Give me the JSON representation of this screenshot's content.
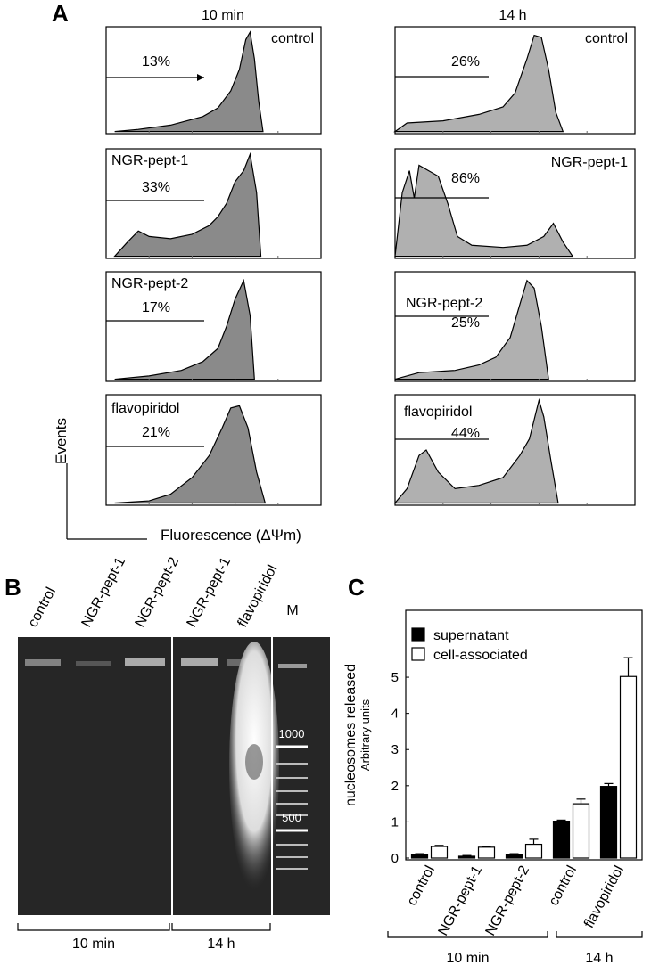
{
  "panel_a": {
    "label": "A",
    "columns": [
      {
        "title": "10 min",
        "plots": [
          {
            "label": "control",
            "percent": "13%"
          },
          {
            "label": "NGR-pept-1",
            "percent": "33%"
          },
          {
            "label": "NGR-pept-2",
            "percent": "17%"
          },
          {
            "label": "flavopiridol",
            "percent": "21%"
          }
        ]
      },
      {
        "title": "14 h",
        "plots": [
          {
            "label": "control",
            "percent": "26%"
          },
          {
            "label": "NGR-pept-1",
            "percent": "86%"
          },
          {
            "label": "NGR-pept-2",
            "percent": "25%"
          },
          {
            "label": "flavopiridol",
            "percent": "44%"
          }
        ]
      }
    ],
    "y_label": "Events",
    "x_label": "Fluorescence (ΔΨm)"
  },
  "panel_b": {
    "label": "B",
    "lanes": [
      "control",
      "NGR-pept-1",
      "NGR-pept-2",
      "NGR-pept-1",
      "flavopiridol"
    ],
    "marker_lane": "M",
    "markers": [
      "1000",
      "500"
    ],
    "groups": [
      "10 min",
      "14 h"
    ]
  },
  "chart_data": {
    "type": "bar",
    "panel_label": "C",
    "y_label": "nucleosomes released",
    "y_sublabel": "Arbitrary units",
    "categories": [
      "control",
      "NGR-pept-1",
      "NGR-pept-2",
      "control",
      "flavopiridol"
    ],
    "groups": [
      "10 min",
      "14 h"
    ],
    "series": [
      {
        "name": "supernatant",
        "color": "#000000",
        "values": [
          0.1,
          0.05,
          0.1,
          1.02,
          1.98
        ],
        "errors": [
          0.02,
          0.02,
          0.02,
          0.03,
          0.08
        ]
      },
      {
        "name": "cell-associated",
        "color": "#ffffff",
        "values": [
          0.32,
          0.3,
          0.38,
          1.5,
          5.02
        ],
        "errors": [
          0.03,
          0.02,
          0.14,
          0.13,
          0.52
        ]
      }
    ],
    "ylim": [
      0,
      6.8
    ],
    "yticks": [
      0,
      1,
      2,
      3,
      4,
      5
    ]
  }
}
